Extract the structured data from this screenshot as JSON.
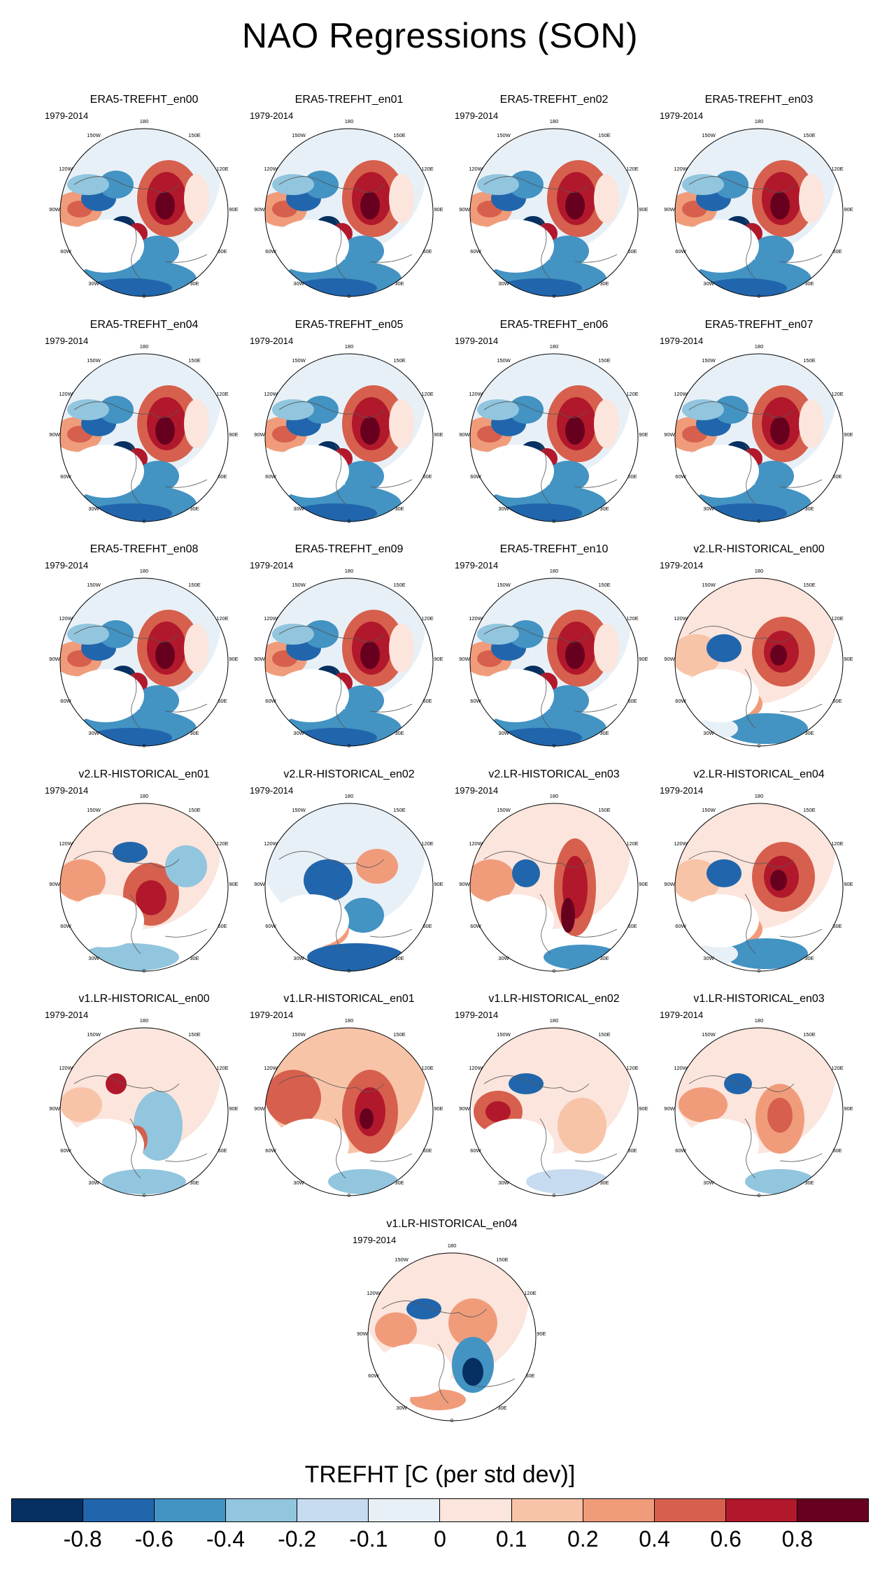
{
  "figure": {
    "title": "NAO Regressions (SON)"
  },
  "panels": [
    {
      "title": "ERA5-TREFHT_en00",
      "period": "1979-2014",
      "pattern": "era5"
    },
    {
      "title": "ERA5-TREFHT_en01",
      "period": "1979-2014",
      "pattern": "era5"
    },
    {
      "title": "ERA5-TREFHT_en02",
      "period": "1979-2014",
      "pattern": "era5"
    },
    {
      "title": "ERA5-TREFHT_en03",
      "period": "1979-2014",
      "pattern": "era5"
    },
    {
      "title": "ERA5-TREFHT_en04",
      "period": "1979-2014",
      "pattern": "era5"
    },
    {
      "title": "ERA5-TREFHT_en05",
      "period": "1979-2014",
      "pattern": "era5"
    },
    {
      "title": "ERA5-TREFHT_en06",
      "period": "1979-2014",
      "pattern": "era5"
    },
    {
      "title": "ERA5-TREFHT_en07",
      "period": "1979-2014",
      "pattern": "era5"
    },
    {
      "title": "ERA5-TREFHT_en08",
      "period": "1979-2014",
      "pattern": "era5"
    },
    {
      "title": "ERA5-TREFHT_en09",
      "period": "1979-2014",
      "pattern": "era5"
    },
    {
      "title": "ERA5-TREFHT_en10",
      "period": "1979-2014",
      "pattern": "era5"
    },
    {
      "title": "v2.LR-HISTORICAL_en00",
      "period": "1979-2014",
      "pattern": "v2a"
    },
    {
      "title": "v2.LR-HISTORICAL_en01",
      "period": "1979-2014",
      "pattern": "v2b"
    },
    {
      "title": "v2.LR-HISTORICAL_en02",
      "period": "1979-2014",
      "pattern": "v2c"
    },
    {
      "title": "v2.LR-HISTORICAL_en03",
      "period": "1979-2014",
      "pattern": "v2d"
    },
    {
      "title": "v2.LR-HISTORICAL_en04",
      "period": "1979-2014",
      "pattern": "v2a"
    },
    {
      "title": "v1.LR-HISTORICAL_en00",
      "period": "1979-2014",
      "pattern": "v1a"
    },
    {
      "title": "v1.LR-HISTORICAL_en01",
      "period": "1979-2014",
      "pattern": "v1b"
    },
    {
      "title": "v1.LR-HISTORICAL_en02",
      "period": "1979-2014",
      "pattern": "v1c"
    },
    {
      "title": "v1.LR-HISTORICAL_en03",
      "period": "1979-2014",
      "pattern": "v1d"
    },
    {
      "title": "v1.LR-HISTORICAL_en04",
      "period": "1979-2014",
      "pattern": "v1e"
    }
  ],
  "longitude_labels": [
    "180",
    "150E",
    "120E",
    "90E",
    "60E",
    "30E",
    "0",
    "30W",
    "60W",
    "90W",
    "120W",
    "150W"
  ],
  "colorbar": {
    "title": "TREFHT [C (per std dev)]",
    "colors": [
      "#053061",
      "#2166ac",
      "#4393c3",
      "#92c5de",
      "#c6dbef",
      "#e8f0f7",
      "#fbe5dc",
      "#f8c4a8",
      "#f09c7b",
      "#d6604d",
      "#b2182b",
      "#67001f"
    ],
    "tick_labels": [
      "-0.8",
      "-0.6",
      "-0.4",
      "-0.2",
      "-0.1",
      "0",
      "0.1",
      "0.2",
      "0.4",
      "0.6",
      "0.8"
    ]
  }
}
